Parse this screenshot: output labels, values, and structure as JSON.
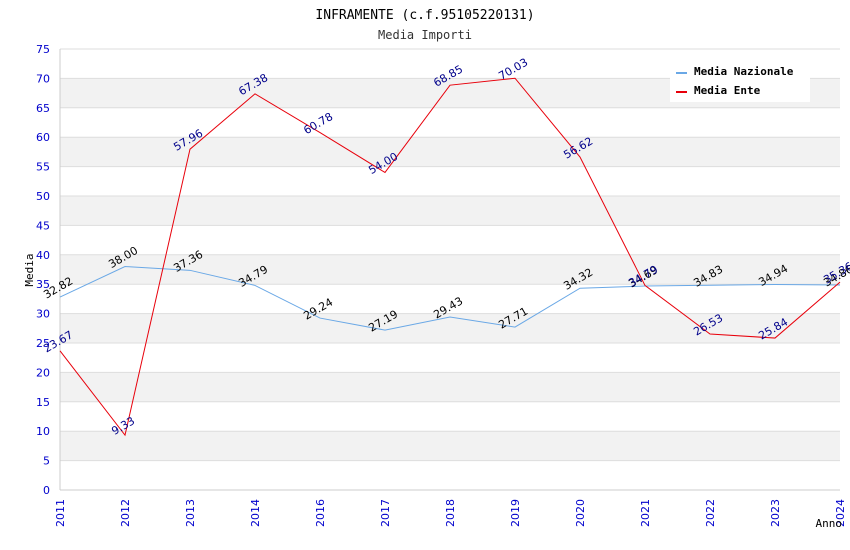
{
  "chart_data": {
    "type": "line",
    "title": "INFRAMENTE (c.f.95105220131)",
    "subtitle": "Media Importi",
    "xlabel": "Anno",
    "ylabel": "Media",
    "x": [
      "2011",
      "2012",
      "2013",
      "2014",
      "2016",
      "2017",
      "2018",
      "2019",
      "2020",
      "2021",
      "2022",
      "2023",
      "2024"
    ],
    "ylim": [
      0,
      75
    ],
    "yticks": [
      0,
      5,
      10,
      15,
      20,
      25,
      30,
      35,
      40,
      45,
      50,
      55,
      60,
      65,
      70,
      75
    ],
    "grid": true,
    "legend_position": "top-right",
    "series": [
      {
        "name": "Media Nazionale",
        "color": "#6aa8e6",
        "label_color": "#000000",
        "values": [
          32.82,
          38.0,
          37.36,
          34.79,
          29.24,
          27.19,
          29.43,
          27.71,
          34.32,
          34.69,
          34.83,
          34.94,
          34.86
        ],
        "labels": [
          "32.82",
          "38.00",
          "37.36",
          "34.79",
          "29.24",
          "27.19",
          "29.43",
          "27.71",
          "34.32",
          "34.69",
          "34.83",
          "34.94",
          "34.86"
        ]
      },
      {
        "name": "Media Ente",
        "color": "#e8000b",
        "label_color": "#00008b",
        "values": [
          23.67,
          9.33,
          57.96,
          67.38,
          60.78,
          54.0,
          68.85,
          70.03,
          56.62,
          34.79,
          26.53,
          25.84,
          35.36
        ],
        "labels": [
          "23.67",
          "9.33",
          "57.96",
          "67.38",
          "60.78",
          "54.00",
          "68.85",
          "70.03",
          "56.62",
          "34.79",
          "26.53",
          "25.84",
          "35.36"
        ]
      }
    ]
  }
}
